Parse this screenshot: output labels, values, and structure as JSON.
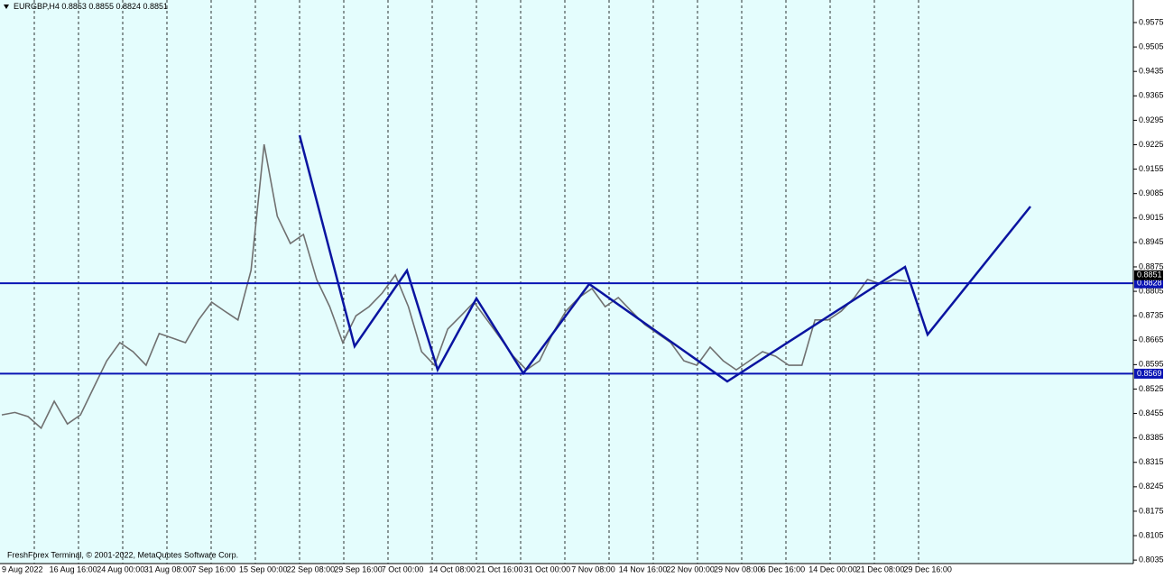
{
  "header": {
    "symbol": "EURGBP,H4",
    "open": "0.8853",
    "high": "0.8855",
    "low": "0.8824",
    "close": "0.8851"
  },
  "footer": "FreshForex Terminal, © 2001-2022, MetaQuotes Software Corp.",
  "chart": {
    "ylim": [
      0.8025,
      0.96396
    ],
    "yticks": [
      0.9575,
      0.9505,
      0.9435,
      0.9365,
      0.9295,
      0.9225,
      0.9155,
      0.9085,
      0.9015,
      0.8945,
      0.8875,
      0.8805,
      0.8735,
      0.8665,
      0.8595,
      0.8525,
      0.8455,
      0.8385,
      0.8315,
      0.8245,
      0.8175,
      0.8105,
      0.8035
    ],
    "x_labels": [
      "9 Aug 2022",
      "16 Aug 16:00",
      "24 Aug 00:00",
      "31 Aug 08:00",
      "7 Sep 16:00",
      "15 Sep 00:00",
      "22 Sep 08:00",
      "29 Sep 16:00",
      "7 Oct 00:00",
      "14 Oct 08:00",
      "21 Oct 16:00",
      "31 Oct 00:00",
      "7 Nov 08:00",
      "14 Nov 16:00",
      "22 Nov 00:00",
      "29 Nov 08:00",
      "6 Dec 16:00",
      "14 Dec 00:00",
      "21 Dec 08:00",
      "29 Dec 16:00"
    ],
    "price": [
      0.8451,
      0.8458,
      0.8446,
      0.8413,
      0.849,
      0.8425,
      0.8451,
      0.8529,
      0.8606,
      0.8658,
      0.8632,
      0.8593,
      0.8684,
      0.8671,
      0.8658,
      0.8723,
      0.8774,
      0.8748,
      0.8723,
      0.8865,
      0.9226,
      0.902,
      0.8942,
      0.8968,
      0.8839,
      0.8761,
      0.8658,
      0.8735,
      0.8761,
      0.88,
      0.8852,
      0.8761,
      0.8632,
      0.8593,
      0.8697,
      0.8735,
      0.8774,
      0.8723,
      0.8671,
      0.8619,
      0.858,
      0.8606,
      0.8684,
      0.8748,
      0.8787,
      0.8813,
      0.8761,
      0.8787,
      0.8748,
      0.871,
      0.8684,
      0.8658,
      0.8606,
      0.8593,
      0.8645,
      0.8606,
      0.858,
      0.8606,
      0.8632,
      0.8619,
      0.8593,
      0.8593,
      0.8723,
      0.8723,
      0.8748,
      0.8787,
      0.8839,
      0.8826,
      0.8839,
      0.8834
    ],
    "current_price": {
      "value": 0.8851,
      "label": "0.8851"
    },
    "levels": [
      {
        "value": 0.8828,
        "label": "0.8828"
      },
      {
        "value": 0.8569,
        "label": "0.8569"
      }
    ]
  }
}
